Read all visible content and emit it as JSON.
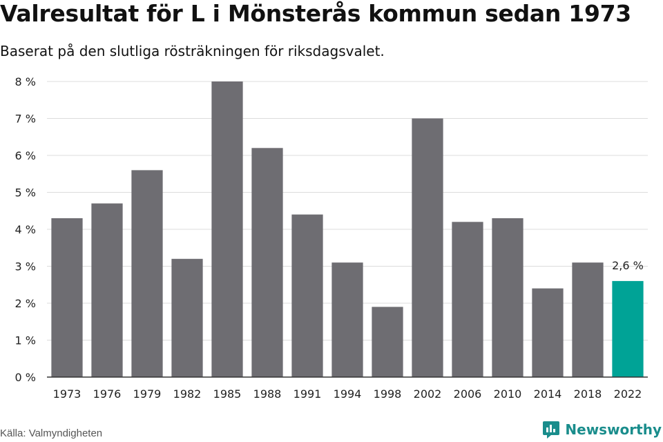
{
  "title": "Valresultat för L i Mönsterås kommun sedan 1973",
  "subtitle": "Baserat på den slutliga rösträkningen för riksdagsvalet.",
  "source": "Källa: Valmyndigheten",
  "brand": {
    "name": "Newsworthy",
    "icon": "newsworthy-logo-icon",
    "color": "#1a8d8c"
  },
  "colors": {
    "bar": "#6e6d72",
    "highlight": "#00a396",
    "grid": "#dcdcdc",
    "axis": "#333333"
  },
  "chart_data": {
    "type": "bar",
    "title": "Valresultat för L i Mönsterås kommun sedan 1973",
    "subtitle": "Baserat på den slutliga rösträkningen för riksdagsvalet.",
    "categories": [
      "1973",
      "1976",
      "1979",
      "1982",
      "1985",
      "1988",
      "1991",
      "1994",
      "1998",
      "2002",
      "2006",
      "2010",
      "2014",
      "2018",
      "2022"
    ],
    "values": [
      4.3,
      4.7,
      5.6,
      3.2,
      8.0,
      6.2,
      4.4,
      3.1,
      1.9,
      7.0,
      4.2,
      4.3,
      2.4,
      3.1,
      2.6
    ],
    "highlight_index": 14,
    "highlight_label": "2,6 %",
    "ylim": [
      0,
      8
    ],
    "yticks": [
      0,
      1,
      2,
      3,
      4,
      5,
      6,
      7,
      8
    ],
    "ytick_labels": [
      "0 %",
      "1 %",
      "2 %",
      "3 %",
      "4 %",
      "5 %",
      "6 %",
      "7 %",
      "8 %"
    ],
    "xlabel": "",
    "ylabel": "",
    "grid": true,
    "legend": "none"
  }
}
